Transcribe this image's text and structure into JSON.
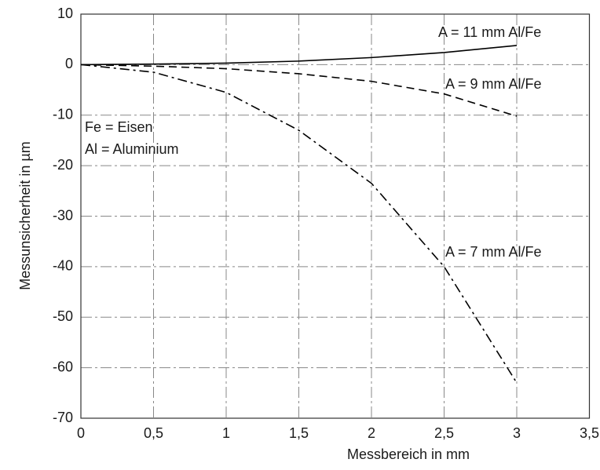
{
  "chart_data": {
    "type": "line",
    "x_label": "Messbereich in mm",
    "y_label": "Messunsicherheit in µm",
    "annotations": [
      "Fe =  Eisen",
      "Al = Aluminium"
    ],
    "x": [
      0,
      0.5,
      1,
      1.5,
      2,
      2.5,
      3
    ],
    "series": [
      {
        "name": "A = 11 mm Al/Fe",
        "color": "#000000",
        "linestyle": "solid",
        "values": [
          0,
          0.1,
          0.3,
          0.7,
          1.4,
          2.4,
          3.8
        ]
      },
      {
        "name": "A = 9 mm Al/Fe",
        "color": "#000000",
        "linestyle": "dashed",
        "values": [
          0,
          -0.3,
          -0.8,
          -1.8,
          -3.3,
          -5.8,
          -10.2
        ]
      },
      {
        "name": "A = 7 mm Al/Fe",
        "color": "#000000",
        "linestyle": "dashdot",
        "values": [
          0,
          -1.5,
          -5.5,
          -13,
          -23.5,
          -40,
          -63
        ]
      }
    ],
    "xlim": [
      0,
      3.5
    ],
    "xticks": [
      0,
      {
        "value": 0.5,
        "label": "0,5"
      },
      1,
      {
        "value": 1.5,
        "label": "1,5"
      },
      2,
      {
        "value": 2.5,
        "label": "2,5"
      },
      3,
      {
        "value": 3.5,
        "label": "3,5"
      }
    ],
    "ylim": [
      -70,
      10
    ],
    "yticks": [
      -70,
      -60,
      -50,
      -40,
      -30,
      -20,
      -10,
      0,
      10
    ],
    "grid": true
  }
}
